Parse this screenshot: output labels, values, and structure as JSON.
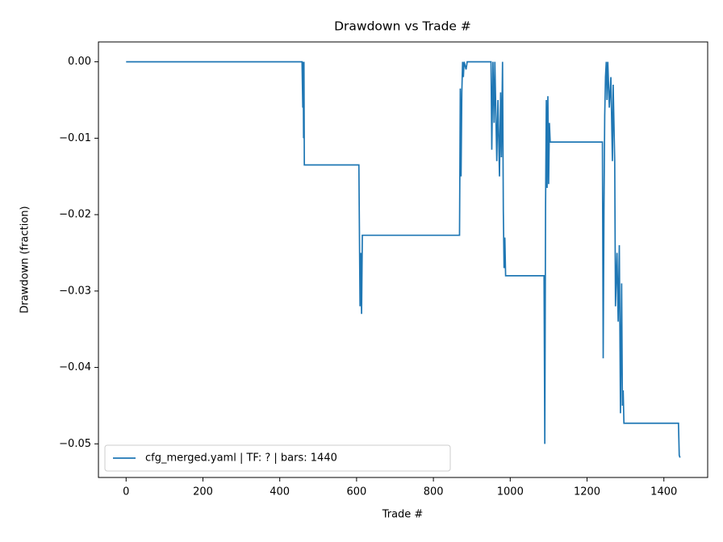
{
  "chart_data": {
    "type": "line",
    "title": "Drawdown vs Trade #",
    "x_label": "Trade #",
    "y_label": "Drawdown (fraction)",
    "series": [
      {
        "name": "cfg_merged.yaml | TF: ? | bars: 1440",
        "color": "#1f77b4",
        "x": [
          0,
          458,
          460,
          461,
          462,
          463,
          464,
          606,
          609,
          611,
          613,
          615,
          868,
          870,
          872,
          874,
          876,
          878,
          880,
          885,
          888,
          950,
          952,
          955,
          958,
          960,
          965,
          968,
          972,
          975,
          977,
          980,
          982,
          984,
          986,
          988,
          1088,
          1090,
          1092,
          1094,
          1096,
          1098,
          1100,
          1102,
          1104,
          1240,
          1242,
          1244,
          1246,
          1248,
          1250,
          1252,
          1254,
          1258,
          1262,
          1266,
          1268,
          1272,
          1274,
          1278,
          1281,
          1284,
          1287,
          1290,
          1292,
          1294,
          1296,
          1438,
          1440,
          1442
        ],
        "values": [
          0,
          0,
          -0.006,
          0,
          -0.01,
          0,
          -0.0135,
          -0.0135,
          -0.032,
          -0.025,
          -0.033,
          -0.0227,
          -0.0227,
          -0.0035,
          -0.015,
          -0.004,
          0,
          -0.002,
          0,
          -0.001,
          0,
          0,
          -0.0115,
          0,
          -0.008,
          0,
          -0.013,
          -0.005,
          -0.015,
          -0.004,
          -0.0125,
          0,
          -0.0195,
          -0.027,
          -0.023,
          -0.028,
          -0.028,
          -0.05,
          -0.019,
          -0.005,
          -0.0165,
          -0.0045,
          -0.016,
          -0.008,
          -0.0105,
          -0.0105,
          -0.0388,
          -0.0195,
          -0.007,
          -0.002,
          0,
          -0.005,
          0,
          -0.006,
          -0.002,
          -0.013,
          -0.003,
          -0.013,
          -0.032,
          -0.025,
          -0.034,
          -0.024,
          -0.046,
          -0.029,
          -0.045,
          -0.043,
          -0.0473,
          -0.0473,
          -0.0515,
          -0.0518
        ]
      }
    ],
    "xlim": [
      -72,
      1514
    ],
    "ylim": [
      -0.0544,
      0.0026
    ],
    "xticks": [
      0,
      200,
      400,
      600,
      800,
      1000,
      1200,
      1400
    ],
    "yticks": [
      {
        "value": -0.05,
        "label": "−0.05"
      },
      {
        "value": -0.04,
        "label": "−0.04"
      },
      {
        "value": -0.03,
        "label": "−0.03"
      },
      {
        "value": -0.02,
        "label": "−0.02"
      },
      {
        "value": -0.01,
        "label": "−0.01"
      },
      {
        "value": 0,
        "label": "0.00"
      }
    ],
    "legend": "lower left",
    "grid": false
  }
}
